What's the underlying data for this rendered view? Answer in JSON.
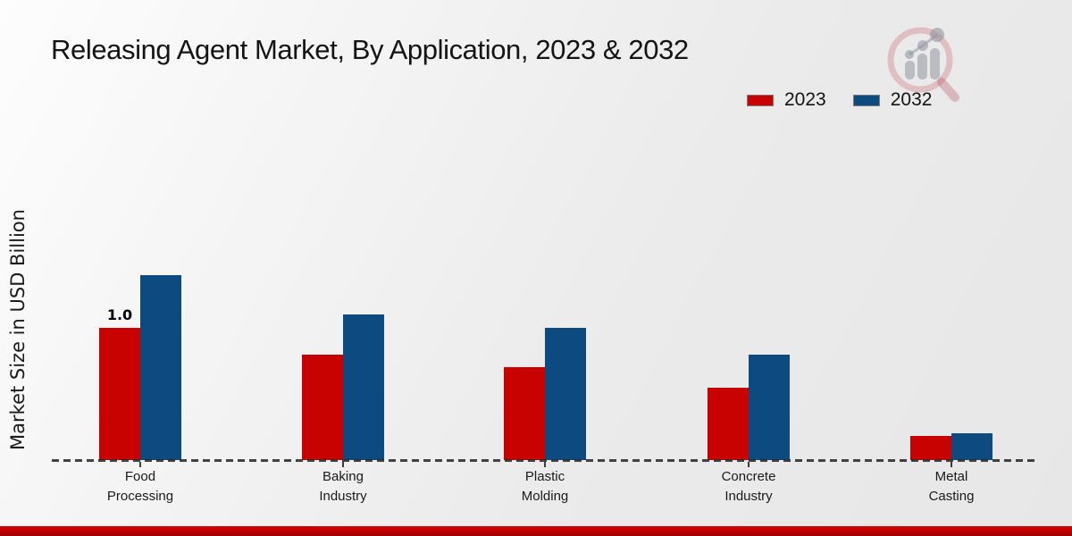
{
  "chart_data": {
    "type": "bar",
    "title": "Releasing Agent Market, By Application, 2023 & 2032",
    "ylabel": "Market Size in USD Billion",
    "xlabel": "",
    "categories": [
      "Food Processing",
      "Baking Industry",
      "Plastic Molding",
      "Concrete Industry",
      "Metal Casting"
    ],
    "series": [
      {
        "name": "2023",
        "color": "#c80101",
        "values": [
          1.0,
          0.8,
          0.7,
          0.55,
          0.18
        ],
        "labels": [
          "1.0",
          "",
          "",
          "",
          ""
        ]
      },
      {
        "name": "2032",
        "color": "#0c4a80",
        "values": [
          1.4,
          1.1,
          1.0,
          0.8,
          0.2
        ],
        "labels": [
          "",
          "",
          "",
          "",
          ""
        ]
      }
    ],
    "ylim": [
      0,
      1.5
    ],
    "grid": false,
    "y_axis_ticks_visible": false,
    "legend_position": "top-right",
    "baseline_style": "dashed"
  },
  "watermark": {
    "icon": "magnifier-bar-chart-logo"
  },
  "footer": {
    "accent_bar_color": "#c00000"
  }
}
